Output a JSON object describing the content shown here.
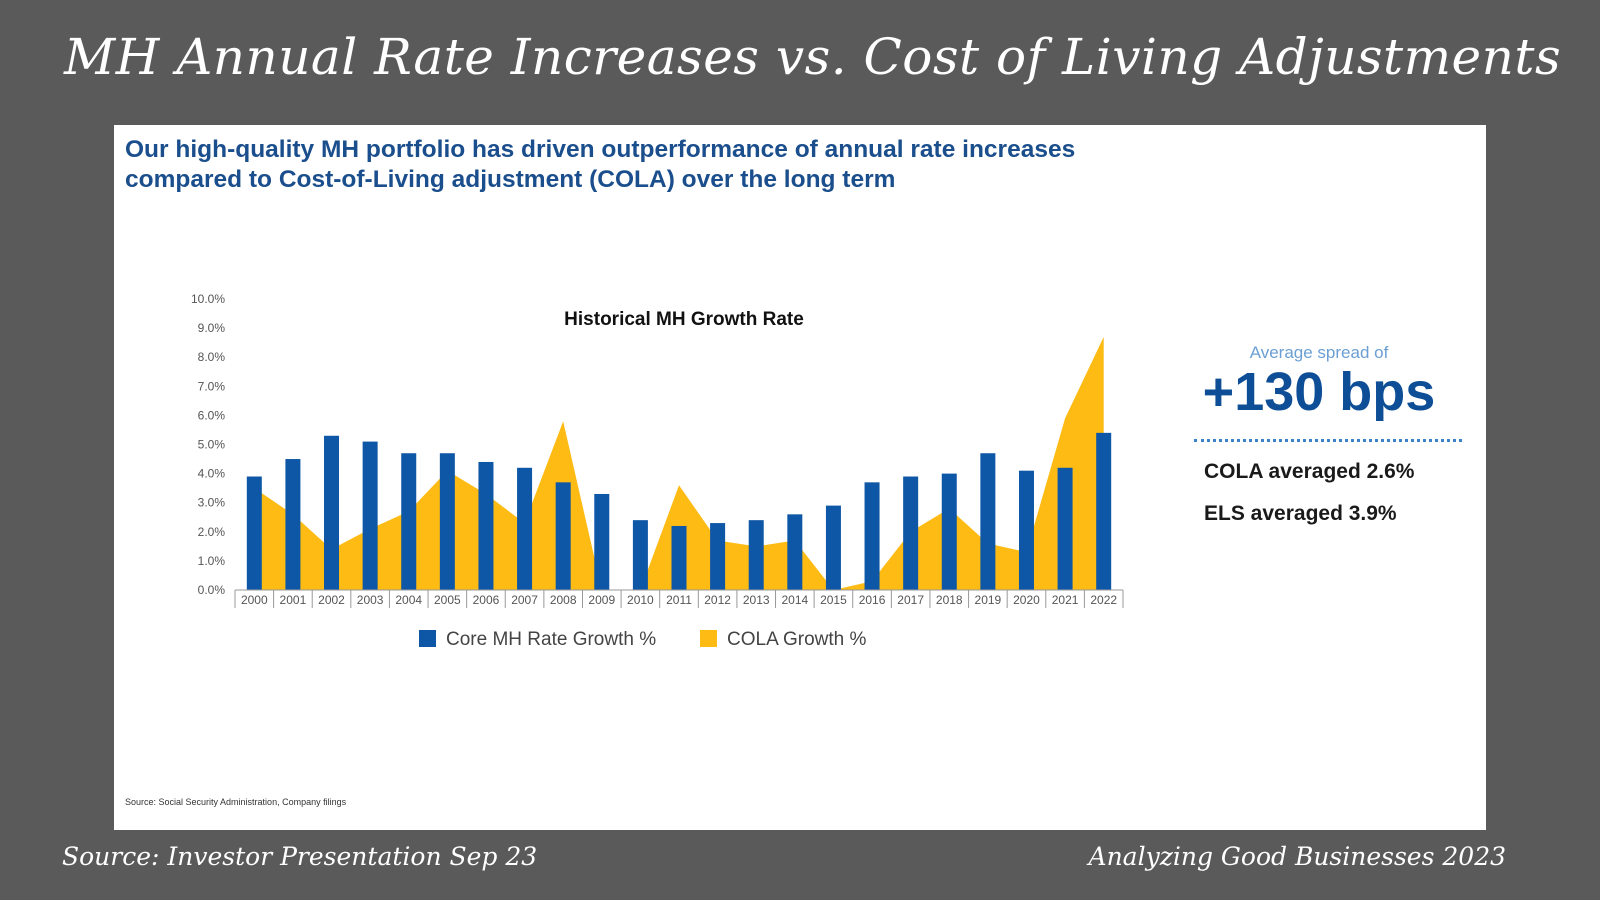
{
  "slide": {
    "title": "MH Annual Rate Increases vs. Cost of Living Adjustments",
    "footer_source": "Source: Investor Presentation Sep 23",
    "footer_brand": "Analyzing Good Businesses 2023"
  },
  "panel": {
    "headline_line1": "Our high-quality MH portfolio has driven outperformance of annual rate increases",
    "headline_line2": "compared to Cost-of-Living adjustment (COLA) over the long term",
    "spread_caption": "Average spread of",
    "spread_value": "+130 bps",
    "cola_avg": "COLA averaged 2.6%",
    "els_avg": "ELS averaged 3.9%",
    "source_note": "Source: Social Security Administration, Company filings"
  },
  "colors": {
    "bar": "#0e56a6",
    "area": "#fdbb14",
    "axis": "#999999"
  },
  "chart_data": {
    "type": "bar",
    "title": "Historical MH Growth Rate",
    "xlabel": "",
    "ylabel": "",
    "ylim": [
      0,
      10
    ],
    "y_ticks": [
      "0.0%",
      "1.0%",
      "2.0%",
      "3.0%",
      "4.0%",
      "5.0%",
      "6.0%",
      "7.0%",
      "8.0%",
      "9.0%",
      "10.0%"
    ],
    "categories": [
      "2000",
      "2001",
      "2002",
      "2003",
      "2004",
      "2005",
      "2006",
      "2007",
      "2008",
      "2009",
      "2010",
      "2011",
      "2012",
      "2013",
      "2014",
      "2015",
      "2016",
      "2017",
      "2018",
      "2019",
      "2020",
      "2021",
      "2022"
    ],
    "legend_position": "bottom",
    "series": [
      {
        "name": "Core MH Rate Growth %",
        "type": "bar",
        "values": [
          3.9,
          4.5,
          5.3,
          5.1,
          4.7,
          4.7,
          4.4,
          4.2,
          3.7,
          3.3,
          2.4,
          2.2,
          2.3,
          2.4,
          2.6,
          2.9,
          3.7,
          3.9,
          4.0,
          4.7,
          4.1,
          4.2,
          5.4
        ]
      },
      {
        "name": "COLA Growth %",
        "type": "area",
        "values": [
          3.5,
          2.6,
          1.4,
          2.1,
          2.7,
          4.1,
          3.3,
          2.3,
          5.8,
          0.0,
          0.0,
          3.6,
          1.7,
          1.5,
          1.7,
          0.0,
          0.3,
          2.0,
          2.8,
          1.6,
          1.3,
          5.9,
          8.7
        ]
      }
    ]
  }
}
